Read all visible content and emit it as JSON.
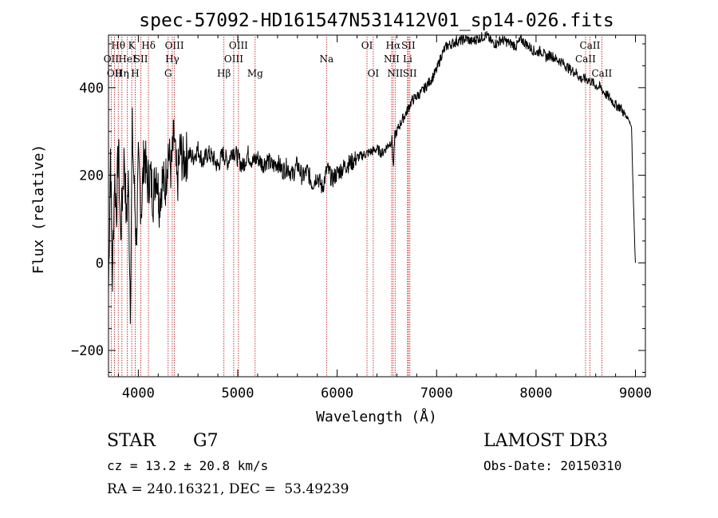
{
  "chart_data": {
    "type": "line",
    "title": "spec-57092-HD161547N531412V01_sp14-026.fits",
    "xlabel": "Wavelength (Å)",
    "ylabel": "Flux (relative)",
    "xlim": [
      3700,
      9100
    ],
    "ylim": [
      -260,
      520
    ],
    "xticks": [
      4000,
      5000,
      6000,
      7000,
      8000,
      9000
    ],
    "yticks": [
      -200,
      0,
      200,
      400
    ],
    "series": [
      {
        "name": "flux",
        "x": [
          3700,
          3720,
          3740,
          3760,
          3780,
          3800,
          3820,
          3840,
          3860,
          3880,
          3900,
          3920,
          3940,
          3960,
          3980,
          4000,
          4030,
          4060,
          4090,
          4120,
          4150,
          4180,
          4210,
          4240,
          4270,
          4300,
          4330,
          4360,
          4390,
          4420,
          4450,
          4500,
          4550,
          4600,
          4650,
          4700,
          4750,
          4800,
          4850,
          4900,
          4950,
          5000,
          5050,
          5100,
          5150,
          5200,
          5250,
          5300,
          5350,
          5400,
          5450,
          5500,
          5550,
          5600,
          5650,
          5700,
          5750,
          5800,
          5850,
          5900,
          5950,
          6000,
          6050,
          6100,
          6150,
          6200,
          6250,
          6300,
          6350,
          6400,
          6450,
          6500,
          6550,
          6565,
          6580,
          6600,
          6650,
          6700,
          6750,
          6800,
          6850,
          6900,
          6950,
          7000,
          7050,
          7100,
          7150,
          7200,
          7250,
          7300,
          7350,
          7400,
          7450,
          7500,
          7550,
          7600,
          7650,
          7700,
          7750,
          7800,
          7850,
          7900,
          7950,
          8000,
          8050,
          8100,
          8150,
          8200,
          8250,
          8300,
          8350,
          8400,
          8450,
          8500,
          8550,
          8600,
          8650,
          8700,
          8750,
          8800,
          8850,
          8900,
          8930,
          8960,
          8980,
          8990,
          9000
        ],
        "values": [
          -70,
          260,
          -40,
          200,
          120,
          270,
          60,
          150,
          250,
          90,
          180,
          -90,
          300,
          160,
          50,
          220,
          120,
          260,
          180,
          200,
          150,
          220,
          140,
          190,
          170,
          260,
          210,
          290,
          170,
          260,
          230,
          250,
          240,
          260,
          230,
          250,
          240,
          220,
          250,
          230,
          260,
          240,
          220,
          250,
          230,
          240,
          225,
          235,
          220,
          230,
          210,
          220,
          200,
          225,
          195,
          210,
          180,
          200,
          170,
          215,
          190,
          205,
          215,
          225,
          230,
          240,
          245,
          250,
          255,
          260,
          250,
          265,
          280,
          215,
          290,
          300,
          325,
          345,
          370,
          380,
          390,
          405,
          420,
          440,
          475,
          495,
          500,
          505,
          508,
          512,
          505,
          510,
          515,
          520,
          505,
          500,
          510,
          505,
          500,
          495,
          510,
          500,
          490,
          480,
          485,
          470,
          475,
          465,
          460,
          450,
          440,
          435,
          420,
          420,
          415,
          405,
          400,
          385,
          375,
          360,
          355,
          335,
          330,
          310,
          140,
          60,
          0
        ]
      }
    ],
    "emission_lines": [
      {
        "wl": 3727,
        "label": "OII",
        "row": 2
      },
      {
        "wl": 3760,
        "label": "OII",
        "row": 3
      },
      {
        "wl": 3798,
        "label": "Hθ",
        "row": 1
      },
      {
        "wl": 3835,
        "label": "Hη",
        "row": 3
      },
      {
        "wl": 3889,
        "label": "HeI",
        "row": 2
      },
      {
        "wl": 3934,
        "label": "K",
        "row": 1
      },
      {
        "wl": 3969,
        "label": "H",
        "row": 3
      },
      {
        "wl": 4026,
        "label": "SII",
        "row": 2
      },
      {
        "wl": 4102,
        "label": "Hδ",
        "row": 1
      },
      {
        "wl": 4300,
        "label": "G",
        "row": 3
      },
      {
        "wl": 4341,
        "label": "Hγ",
        "row": 2
      },
      {
        "wl": 4363,
        "label": "OIII",
        "row": 1
      },
      {
        "wl": 4861,
        "label": "Hβ",
        "row": 3
      },
      {
        "wl": 4959,
        "label": "OIII",
        "row": 2
      },
      {
        "wl": 5007,
        "label": "OIII",
        "row": 1
      },
      {
        "wl": 5175,
        "label": "Mg",
        "row": 3
      },
      {
        "wl": 5893,
        "label": "Na",
        "row": 2
      },
      {
        "wl": 6300,
        "label": "OI",
        "row": 1
      },
      {
        "wl": 6363,
        "label": "OI",
        "row": 3
      },
      {
        "wl": 6548,
        "label": "NII",
        "row": 2
      },
      {
        "wl": 6563,
        "label": "Hα",
        "row": 1
      },
      {
        "wl": 6583,
        "label": "NII",
        "row": 3
      },
      {
        "wl": 6708,
        "label": "Li",
        "row": 2
      },
      {
        "wl": 6716,
        "label": "SII",
        "row": 1
      },
      {
        "wl": 6731,
        "label": "SII",
        "row": 3
      },
      {
        "wl": 8498,
        "label": "CaII",
        "row": 2
      },
      {
        "wl": 8542,
        "label": "CaII",
        "row": 1
      },
      {
        "wl": 8662,
        "label": "CaII",
        "row": 3
      }
    ],
    "line_color": "#000000",
    "marker_color": "#cc0000"
  },
  "info": {
    "class": "STAR",
    "subclass": "G7",
    "survey": "LAMOST DR3",
    "cz": "cz = 13.2 ± 20.8 km/s",
    "obs_date": "Obs-Date: 20150310",
    "coords": "RA = 240.16321, DEC =  53.49239"
  }
}
